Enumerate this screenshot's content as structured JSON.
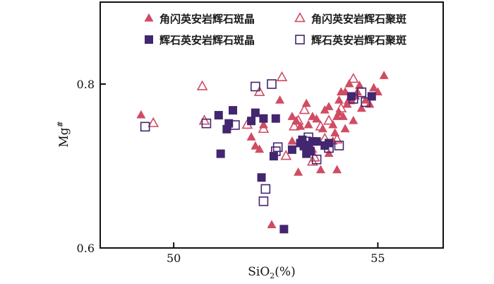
{
  "chart_data": {
    "type": "scatter",
    "title": "",
    "xlabel": "SiO2(%)",
    "ylabel": "Mg#",
    "xlim": [
      48.2,
      56.6
    ],
    "ylim": [
      0.6,
      0.9
    ],
    "xticks": [
      50,
      55
    ],
    "yticks": [
      0.6,
      0.8
    ],
    "xtick_labels": [
      "50",
      "55"
    ],
    "ytick_labels": [
      "0.6",
      "0.8"
    ],
    "legend": "top",
    "colors": {
      "red": "#d04c63",
      "purple": "#42266f"
    },
    "series": [
      {
        "name": "角闪英安岩辉石斑晶",
        "marker": "filled-triangle",
        "color": "#d04c63",
        "points": [
          [
            49.2,
            0.762
          ],
          [
            51.9,
            0.735
          ],
          [
            52.0,
            0.724
          ],
          [
            52.1,
            0.72
          ],
          [
            52.2,
            0.75
          ],
          [
            52.4,
            0.628
          ],
          [
            52.6,
            0.78
          ],
          [
            52.9,
            0.76
          ],
          [
            53.0,
            0.755
          ],
          [
            53.05,
            0.692
          ],
          [
            53.1,
            0.748
          ],
          [
            53.2,
            0.73
          ],
          [
            53.25,
            0.776
          ],
          [
            53.3,
            0.75
          ],
          [
            53.4,
            0.76
          ],
          [
            53.5,
            0.757
          ],
          [
            53.6,
            0.695
          ],
          [
            53.65,
            0.745
          ],
          [
            53.7,
            0.768
          ],
          [
            53.8,
            0.715
          ],
          [
            53.8,
            0.772
          ],
          [
            53.9,
            0.75
          ],
          [
            53.95,
            0.74
          ],
          [
            54.0,
            0.695
          ],
          [
            54.0,
            0.76
          ],
          [
            54.05,
            0.78
          ],
          [
            54.1,
            0.79
          ],
          [
            54.15,
            0.76
          ],
          [
            54.2,
            0.745
          ],
          [
            54.25,
            0.775
          ],
          [
            54.3,
            0.8
          ],
          [
            54.35,
            0.78
          ],
          [
            54.4,
            0.755
          ],
          [
            54.45,
            0.785
          ],
          [
            54.5,
            0.79
          ],
          [
            54.6,
            0.77
          ],
          [
            54.7,
            0.78
          ],
          [
            54.8,
            0.775
          ],
          [
            54.9,
            0.795
          ],
          [
            55.0,
            0.79
          ],
          [
            55.15,
            0.81
          ],
          [
            54.2,
            0.79
          ],
          [
            53.9,
            0.73
          ],
          [
            53.4,
            0.72
          ],
          [
            52.9,
            0.73
          ],
          [
            54.05,
            0.765
          ],
          [
            54.55,
            0.798
          ]
        ]
      },
      {
        "name": "角闪英安岩辉石聚斑",
        "marker": "open-triangle",
        "color": "#d04c63",
        "points": [
          [
            49.5,
            0.752
          ],
          [
            50.7,
            0.797
          ],
          [
            50.75,
            0.755
          ],
          [
            51.8,
            0.75
          ],
          [
            52.1,
            0.79
          ],
          [
            52.2,
            0.745
          ],
          [
            52.65,
            0.808
          ],
          [
            52.75,
            0.712
          ],
          [
            53.05,
            0.755
          ],
          [
            53.2,
            0.768
          ],
          [
            53.3,
            0.722
          ],
          [
            53.4,
            0.705
          ],
          [
            53.45,
            0.71
          ],
          [
            53.6,
            0.748
          ],
          [
            53.8,
            0.755
          ],
          [
            54.0,
            0.732
          ],
          [
            54.3,
            0.78
          ],
          [
            54.4,
            0.806
          ],
          [
            52.95,
            0.748
          ],
          [
            53.7,
            0.733
          ],
          [
            54.1,
            0.77
          ]
        ]
      },
      {
        "name": "辉石英安岩辉石斑晶",
        "marker": "filled-square",
        "color": "#42266f",
        "points": [
          [
            51.1,
            0.762
          ],
          [
            51.15,
            0.715
          ],
          [
            51.3,
            0.745
          ],
          [
            51.35,
            0.752
          ],
          [
            51.45,
            0.768
          ],
          [
            51.9,
            0.755
          ],
          [
            52.0,
            0.765
          ],
          [
            52.15,
            0.686
          ],
          [
            52.2,
            0.758
          ],
          [
            52.45,
            0.712
          ],
          [
            52.5,
            0.758
          ],
          [
            52.7,
            0.623
          ],
          [
            52.9,
            0.72
          ],
          [
            53.1,
            0.728
          ],
          [
            53.15,
            0.732
          ],
          [
            53.2,
            0.725
          ],
          [
            53.3,
            0.722
          ],
          [
            53.35,
            0.718
          ],
          [
            53.4,
            0.73
          ],
          [
            53.5,
            0.73
          ],
          [
            53.7,
            0.725
          ],
          [
            53.8,
            0.728
          ],
          [
            54.35,
            0.785
          ],
          [
            54.85,
            0.785
          ],
          [
            53.25,
            0.715
          ]
        ]
      },
      {
        "name": "辉石英安岩辉石聚斑",
        "marker": "open-square",
        "color": "#42266f",
        "points": [
          [
            49.3,
            0.748
          ],
          [
            50.8,
            0.752
          ],
          [
            51.5,
            0.75
          ],
          [
            52.0,
            0.797
          ],
          [
            52.2,
            0.657
          ],
          [
            52.25,
            0.672
          ],
          [
            52.4,
            0.8
          ],
          [
            52.5,
            0.718
          ],
          [
            52.55,
            0.723
          ],
          [
            53.2,
            0.725
          ],
          [
            53.25,
            0.73
          ],
          [
            53.3,
            0.735
          ],
          [
            53.5,
            0.708
          ],
          [
            53.8,
            0.722
          ],
          [
            54.05,
            0.725
          ],
          [
            54.4,
            0.782
          ],
          [
            54.6,
            0.79
          ],
          [
            54.7,
            0.778
          ]
        ]
      }
    ]
  }
}
